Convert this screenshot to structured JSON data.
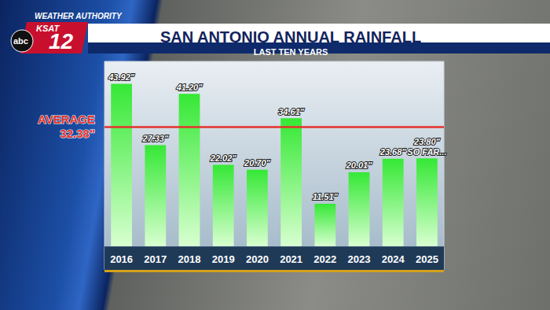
{
  "chart_data": {
    "type": "bar",
    "title": "SAN ANTONIO ANNUAL RAINFALL",
    "subtitle": "LAST TEN YEARS",
    "annotations": [
      "WEATHER AUTHORITY",
      "KSAT",
      "12",
      "abc"
    ],
    "categories": [
      "2016",
      "2017",
      "2018",
      "2019",
      "2020",
      "2021",
      "2022",
      "2023",
      "2024",
      "2025"
    ],
    "values": [
      43.92,
      27.33,
      41.2,
      22.02,
      20.7,
      34.61,
      11.51,
      20.01,
      23.68,
      23.8
    ],
    "value_labels": [
      "43.92\"",
      "27.33\"",
      "41.20\"",
      "22.02\"",
      "20.70\"",
      "34.61\"",
      "11.51\"",
      "20.01\"",
      "23.68\"",
      "23.80\" SO FAR..."
    ],
    "average": {
      "label": "AVERAGE",
      "value": 32.38,
      "value_label": "32.38\""
    },
    "color": "#35e835",
    "ylim": [
      0,
      50
    ],
    "tick_labels": "x",
    "grid": false,
    "data_labels": true
  }
}
